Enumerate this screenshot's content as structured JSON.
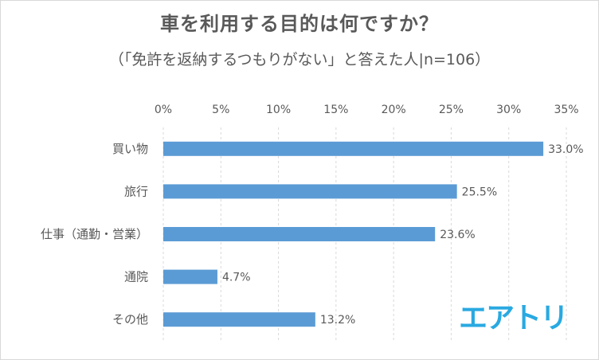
{
  "title": "車を利用する目的は何ですか？",
  "subtitle": "（「免許を返納するつもりがない」と答えた人|n=106）",
  "logo_text": "エアトリ",
  "colors": {
    "bar": "#5b9bd5",
    "grid": "#d9d9d9",
    "text": "#595959",
    "logo": "#29a9e1"
  },
  "chart_data": {
    "type": "bar",
    "orientation": "horizontal",
    "categories": [
      "買い物",
      "旅行",
      "仕事（通勤・営業）",
      "通院",
      "その他"
    ],
    "values": [
      33.0,
      25.5,
      23.6,
      4.7,
      13.2
    ],
    "value_labels": [
      "33.0%",
      "25.5%",
      "23.6%",
      "4.7%",
      "13.2%"
    ],
    "xlim": [
      0,
      35
    ],
    "x_ticks": [
      "0%",
      "5%",
      "10%",
      "15%",
      "20%",
      "25%",
      "30%",
      "35%"
    ],
    "x_tick_values": [
      0,
      5,
      10,
      15,
      20,
      25,
      30,
      35
    ],
    "grid": true,
    "legend": "none"
  }
}
